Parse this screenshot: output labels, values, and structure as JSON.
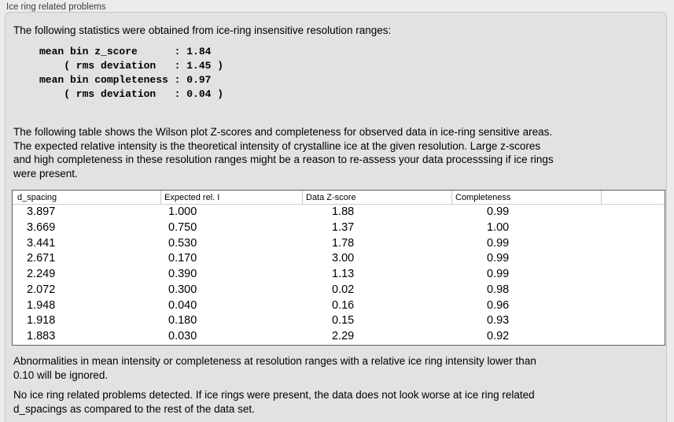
{
  "colors": {
    "outer_background": "#ececec",
    "panel_background": "#e2e2e2",
    "panel_border": "#c5c5c5",
    "table_background": "#ffffff",
    "table_border": "#5f5f5f",
    "header_separator": "#c4c4c4",
    "text": "#000000"
  },
  "header": {
    "title": "Ice ring related problems"
  },
  "panel": {
    "intro": "The following statistics were obtained from ice-ring insensitive resolution ranges:",
    "stats_block": "mean bin z_score      : 1.84\n    ( rms deviation   : 1.45 )\nmean bin completeness : 0.97\n    ( rms deviation   : 0.04 )",
    "stats": {
      "mean_bin_z_score": "1.84",
      "z_score_rms_deviation": "1.45",
      "mean_bin_completeness": "0.97",
      "completeness_rms_deviation": "0.04"
    },
    "description": "The following table shows the Wilson plot Z-scores and completeness for observed data in ice-ring sensitive areas.\nThe expected relative intensity is the theoretical intensity of crystalline ice at the given resolution. Large z-scores\nand high completeness in these resolution ranges might be a reason to re-assess your data processsing if ice rings\nwere present.",
    "table": {
      "columns": [
        "d_spacing",
        "Expected rel. I",
        "Data Z-score",
        "Completeness"
      ],
      "rows": [
        [
          "3.897",
          "1.000",
          "1.88",
          "0.99"
        ],
        [
          "3.669",
          "0.750",
          "1.37",
          "1.00"
        ],
        [
          "3.441",
          "0.530",
          "1.78",
          "0.99"
        ],
        [
          "2.671",
          "0.170",
          "3.00",
          "0.99"
        ],
        [
          "2.249",
          "0.390",
          "1.13",
          "0.99"
        ],
        [
          "2.072",
          "0.300",
          "0.02",
          "0.98"
        ],
        [
          "1.948",
          "0.040",
          "0.16",
          "0.96"
        ],
        [
          "1.918",
          "0.180",
          "0.15",
          "0.93"
        ],
        [
          "1.883",
          "0.030",
          "2.29",
          "0.92"
        ]
      ]
    },
    "note": "Abnormalities in mean intensity or completeness at resolution ranges with a relative ice ring intensity lower than\n0.10 will be ignored.",
    "conclusion": "No ice ring related problems detected. If ice rings were present, the data does not look worse at ice ring related\nd_spacings as compared to the rest of the data set."
  }
}
